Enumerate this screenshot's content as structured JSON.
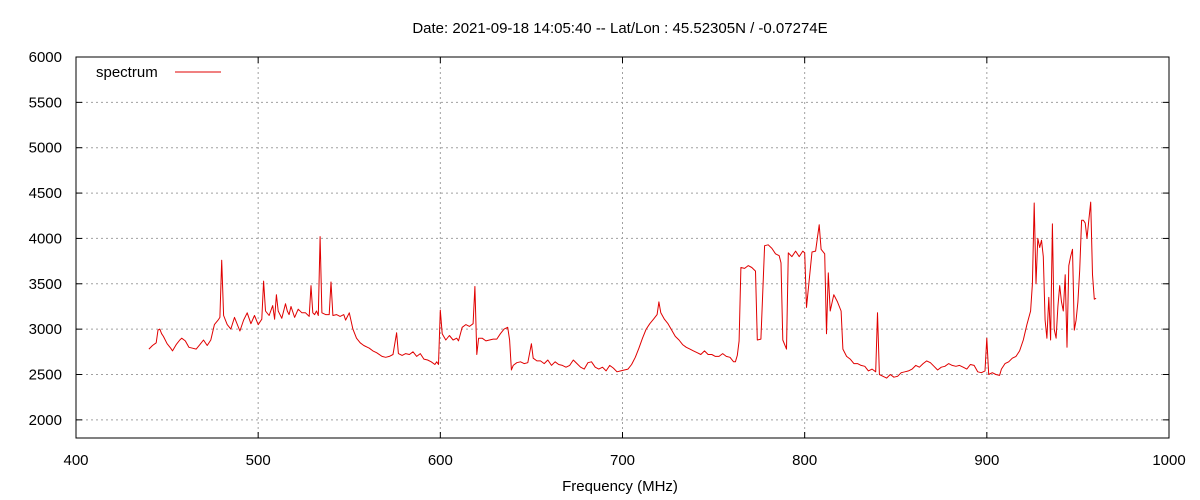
{
  "chart_data": {
    "type": "line",
    "title": "Date: 2021-09-18 14:05:40  --  Lat/Lon : 45.52305N / -0.07274E",
    "xlabel": "Frequency (MHz)",
    "ylabel": "",
    "xlim": [
      400,
      1000
    ],
    "ylim": [
      1800,
      6000
    ],
    "xticks": [
      400,
      500,
      600,
      700,
      800,
      900,
      1000
    ],
    "yticks": [
      2000,
      2500,
      3000,
      3500,
      4000,
      4500,
      5000,
      5500,
      6000
    ],
    "grid": true,
    "legend": "top-left",
    "series": [
      {
        "name": "spectrum",
        "color": "#e00000",
        "points": [
          [
            440,
            2780
          ],
          [
            442,
            2820
          ],
          [
            444,
            2850
          ],
          [
            445,
            2990
          ],
          [
            446,
            3000
          ],
          [
            447,
            2950
          ],
          [
            448,
            2920
          ],
          [
            450,
            2840
          ],
          [
            452,
            2790
          ],
          [
            453,
            2760
          ],
          [
            455,
            2830
          ],
          [
            457,
            2880
          ],
          [
            458,
            2900
          ],
          [
            460,
            2870
          ],
          [
            462,
            2800
          ],
          [
            464,
            2790
          ],
          [
            466,
            2780
          ],
          [
            468,
            2830
          ],
          [
            470,
            2880
          ],
          [
            472,
            2820
          ],
          [
            474,
            2880
          ],
          [
            476,
            3050
          ],
          [
            478,
            3100
          ],
          [
            479,
            3130
          ],
          [
            480,
            3760
          ],
          [
            481,
            3150
          ],
          [
            483,
            3050
          ],
          [
            485,
            3000
          ],
          [
            487,
            3130
          ],
          [
            490,
            2980
          ],
          [
            492,
            3100
          ],
          [
            494,
            3180
          ],
          [
            496,
            3060
          ],
          [
            498,
            3150
          ],
          [
            500,
            3050
          ],
          [
            502,
            3110
          ],
          [
            503,
            3530
          ],
          [
            504,
            3200
          ],
          [
            506,
            3150
          ],
          [
            508,
            3260
          ],
          [
            509,
            3110
          ],
          [
            510,
            3380
          ],
          [
            511,
            3200
          ],
          [
            513,
            3120
          ],
          [
            515,
            3280
          ],
          [
            516,
            3200
          ],
          [
            517,
            3160
          ],
          [
            518,
            3250
          ],
          [
            520,
            3130
          ],
          [
            522,
            3220
          ],
          [
            524,
            3180
          ],
          [
            526,
            3180
          ],
          [
            528,
            3140
          ],
          [
            529,
            3480
          ],
          [
            530,
            3180
          ],
          [
            531,
            3160
          ],
          [
            532,
            3200
          ],
          [
            533,
            3150
          ],
          [
            534,
            4020
          ],
          [
            535,
            3180
          ],
          [
            537,
            3160
          ],
          [
            539,
            3160
          ],
          [
            540,
            3520
          ],
          [
            541,
            3150
          ],
          [
            543,
            3160
          ],
          [
            545,
            3140
          ],
          [
            547,
            3160
          ],
          [
            548,
            3100
          ],
          [
            550,
            3180
          ],
          [
            552,
            3000
          ],
          [
            554,
            2900
          ],
          [
            556,
            2850
          ],
          [
            558,
            2820
          ],
          [
            560,
            2800
          ],
          [
            561,
            2790
          ],
          [
            563,
            2760
          ],
          [
            565,
            2740
          ],
          [
            568,
            2700
          ],
          [
            570,
            2690
          ],
          [
            572,
            2700
          ],
          [
            574,
            2720
          ],
          [
            576,
            2960
          ],
          [
            577,
            2730
          ],
          [
            579,
            2710
          ],
          [
            581,
            2730
          ],
          [
            583,
            2720
          ],
          [
            585,
            2750
          ],
          [
            587,
            2700
          ],
          [
            589,
            2730
          ],
          [
            591,
            2670
          ],
          [
            593,
            2660
          ],
          [
            595,
            2640
          ],
          [
            597,
            2610
          ],
          [
            598,
            2640
          ],
          [
            599,
            2610
          ],
          [
            600,
            3210
          ],
          [
            601,
            2950
          ],
          [
            603,
            2880
          ],
          [
            605,
            2930
          ],
          [
            607,
            2880
          ],
          [
            609,
            2900
          ],
          [
            610,
            2870
          ],
          [
            612,
            3020
          ],
          [
            614,
            3050
          ],
          [
            616,
            3030
          ],
          [
            618,
            3060
          ],
          [
            619,
            3470
          ],
          [
            620,
            2720
          ],
          [
            621,
            2900
          ],
          [
            623,
            2900
          ],
          [
            625,
            2870
          ],
          [
            627,
            2880
          ],
          [
            629,
            2890
          ],
          [
            631,
            2890
          ],
          [
            633,
            2950
          ],
          [
            635,
            3000
          ],
          [
            637,
            3020
          ],
          [
            638,
            2880
          ],
          [
            639,
            2550
          ],
          [
            640,
            2600
          ],
          [
            642,
            2630
          ],
          [
            644,
            2640
          ],
          [
            646,
            2620
          ],
          [
            648,
            2630
          ],
          [
            650,
            2840
          ],
          [
            651,
            2680
          ],
          [
            653,
            2650
          ],
          [
            655,
            2650
          ],
          [
            657,
            2620
          ],
          [
            659,
            2660
          ],
          [
            661,
            2600
          ],
          [
            663,
            2640
          ],
          [
            665,
            2610
          ],
          [
            667,
            2600
          ],
          [
            669,
            2580
          ],
          [
            671,
            2600
          ],
          [
            673,
            2660
          ],
          [
            675,
            2620
          ],
          [
            677,
            2580
          ],
          [
            679,
            2560
          ],
          [
            681,
            2630
          ],
          [
            683,
            2640
          ],
          [
            685,
            2580
          ],
          [
            687,
            2560
          ],
          [
            689,
            2580
          ],
          [
            691,
            2540
          ],
          [
            693,
            2600
          ],
          [
            695,
            2570
          ],
          [
            697,
            2530
          ],
          [
            699,
            2540
          ],
          [
            701,
            2550
          ],
          [
            703,
            2560
          ],
          [
            705,
            2610
          ],
          [
            707,
            2690
          ],
          [
            709,
            2790
          ],
          [
            711,
            2900
          ],
          [
            713,
            3000
          ],
          [
            715,
            3060
          ],
          [
            717,
            3110
          ],
          [
            719,
            3160
          ],
          [
            720,
            3300
          ],
          [
            721,
            3180
          ],
          [
            723,
            3110
          ],
          [
            725,
            3060
          ],
          [
            727,
            2990
          ],
          [
            729,
            2920
          ],
          [
            731,
            2880
          ],
          [
            733,
            2830
          ],
          [
            735,
            2800
          ],
          [
            737,
            2780
          ],
          [
            739,
            2760
          ],
          [
            741,
            2740
          ],
          [
            743,
            2720
          ],
          [
            745,
            2760
          ],
          [
            747,
            2720
          ],
          [
            749,
            2720
          ],
          [
            751,
            2700
          ],
          [
            753,
            2700
          ],
          [
            755,
            2730
          ],
          [
            757,
            2700
          ],
          [
            759,
            2690
          ],
          [
            761,
            2640
          ],
          [
            762,
            2640
          ],
          [
            763,
            2710
          ],
          [
            764,
            2870
          ],
          [
            765,
            3680
          ],
          [
            767,
            3670
          ],
          [
            769,
            3700
          ],
          [
            771,
            3680
          ],
          [
            773,
            3640
          ],
          [
            774,
            2880
          ],
          [
            776,
            2890
          ],
          [
            778,
            3920
          ],
          [
            780,
            3930
          ],
          [
            782,
            3890
          ],
          [
            784,
            3830
          ],
          [
            786,
            3810
          ],
          [
            787,
            3730
          ],
          [
            788,
            2880
          ],
          [
            790,
            2780
          ],
          [
            791,
            3840
          ],
          [
            793,
            3800
          ],
          [
            795,
            3860
          ],
          [
            797,
            3800
          ],
          [
            799,
            3860
          ],
          [
            800,
            3840
          ],
          [
            801,
            3240
          ],
          [
            802,
            3440
          ],
          [
            804,
            3850
          ],
          [
            806,
            3860
          ],
          [
            808,
            4150
          ],
          [
            809,
            3880
          ],
          [
            811,
            3830
          ],
          [
            812,
            2950
          ],
          [
            813,
            3620
          ],
          [
            814,
            3200
          ],
          [
            816,
            3380
          ],
          [
            818,
            3300
          ],
          [
            820,
            3200
          ],
          [
            821,
            2780
          ],
          [
            823,
            2700
          ],
          [
            825,
            2670
          ],
          [
            827,
            2620
          ],
          [
            829,
            2620
          ],
          [
            831,
            2600
          ],
          [
            833,
            2590
          ],
          [
            835,
            2540
          ],
          [
            837,
            2560
          ],
          [
            839,
            2530
          ],
          [
            840,
            3180
          ],
          [
            841,
            2500
          ],
          [
            843,
            2480
          ],
          [
            845,
            2460
          ],
          [
            847,
            2500
          ],
          [
            849,
            2470
          ],
          [
            851,
            2480
          ],
          [
            853,
            2520
          ],
          [
            855,
            2530
          ],
          [
            857,
            2540
          ],
          [
            859,
            2560
          ],
          [
            861,
            2600
          ],
          [
            863,
            2580
          ],
          [
            865,
            2620
          ],
          [
            867,
            2650
          ],
          [
            869,
            2630
          ],
          [
            871,
            2590
          ],
          [
            873,
            2550
          ],
          [
            875,
            2580
          ],
          [
            877,
            2590
          ],
          [
            879,
            2620
          ],
          [
            881,
            2600
          ],
          [
            883,
            2590
          ],
          [
            885,
            2600
          ],
          [
            887,
            2580
          ],
          [
            889,
            2560
          ],
          [
            891,
            2610
          ],
          [
            893,
            2600
          ],
          [
            895,
            2530
          ],
          [
            897,
            2520
          ],
          [
            899,
            2540
          ],
          [
            900,
            2900
          ],
          [
            901,
            2500
          ],
          [
            903,
            2520
          ],
          [
            905,
            2500
          ],
          [
            907,
            2490
          ],
          [
            908,
            2560
          ],
          [
            910,
            2620
          ],
          [
            912,
            2640
          ],
          [
            914,
            2680
          ],
          [
            916,
            2700
          ],
          [
            918,
            2760
          ],
          [
            920,
            2880
          ],
          [
            922,
            3050
          ],
          [
            924,
            3200
          ],
          [
            925,
            3500
          ],
          [
            926,
            4390
          ],
          [
            927,
            3500
          ],
          [
            928,
            4000
          ],
          [
            929,
            3900
          ],
          [
            930,
            3980
          ],
          [
            931,
            3800
          ],
          [
            932,
            3100
          ],
          [
            933,
            2900
          ],
          [
            934,
            3350
          ],
          [
            935,
            2880
          ],
          [
            936,
            4160
          ],
          [
            937,
            3000
          ],
          [
            938,
            2900
          ],
          [
            939,
            3250
          ],
          [
            940,
            3480
          ],
          [
            941,
            3300
          ],
          [
            942,
            3200
          ],
          [
            943,
            3600
          ],
          [
            944,
            2800
          ],
          [
            945,
            3700
          ],
          [
            946,
            3800
          ],
          [
            947,
            3880
          ],
          [
            948,
            2990
          ],
          [
            949,
            3100
          ],
          [
            950,
            3300
          ],
          [
            951,
            3650
          ],
          [
            952,
            4200
          ],
          [
            953,
            4200
          ],
          [
            954,
            4170
          ],
          [
            955,
            4000
          ],
          [
            956,
            4200
          ],
          [
            957,
            4400
          ],
          [
            958,
            3600
          ],
          [
            959,
            3330
          ],
          [
            960,
            3340
          ]
        ]
      }
    ]
  }
}
